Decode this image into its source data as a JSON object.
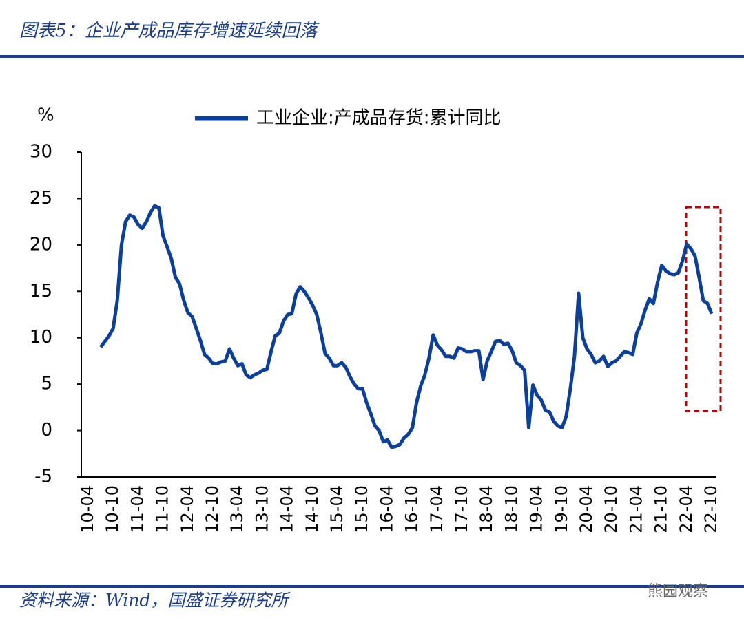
{
  "header": {
    "title": "图表5：企业产成品库存增速延续回落"
  },
  "chart_data": {
    "type": "line",
    "y_unit": "%",
    "categories": [
      "10-04",
      null,
      null,
      null,
      null,
      null,
      "10-10",
      null,
      null,
      null,
      null,
      null,
      "11-04",
      null,
      null,
      null,
      null,
      null,
      "11-10",
      null,
      null,
      null,
      null,
      null,
      "12-04",
      null,
      null,
      null,
      null,
      null,
      "12-10",
      null,
      null,
      null,
      null,
      null,
      "13-04",
      null,
      null,
      null,
      null,
      null,
      "13-10",
      null,
      null,
      null,
      null,
      null,
      "14-04",
      null,
      null,
      null,
      null,
      null,
      "14-10",
      null,
      null,
      null,
      null,
      null,
      "15-04",
      null,
      null,
      null,
      null,
      null,
      "15-10",
      null,
      null,
      null,
      null,
      null,
      "16-04",
      null,
      null,
      null,
      null,
      null,
      "16-10",
      null,
      null,
      null,
      null,
      null,
      "17-04",
      null,
      null,
      null,
      null,
      null,
      "17-10",
      null,
      null,
      null,
      null,
      null,
      "18-04",
      null,
      null,
      null,
      null,
      null,
      "18-10",
      null,
      null,
      null,
      null,
      null,
      "19-04",
      null,
      null,
      null,
      null,
      null,
      "19-10",
      null,
      null,
      null,
      null,
      null,
      "20-04",
      null,
      null,
      null,
      null,
      null,
      "20-10",
      null,
      null,
      null,
      null,
      null,
      "21-04",
      null,
      null,
      null,
      null,
      null,
      "21-10",
      null,
      null,
      null,
      null,
      null,
      "22-04",
      null,
      null,
      null,
      null,
      null,
      "22-10"
    ],
    "series": [
      {
        "name": "工业企业:产成品存货:累计同比",
        "color": "#0b3f9c",
        "values": [
          null,
          null,
          null,
          9.0,
          9.6,
          10.2,
          11.0,
          14.0,
          20.0,
          22.5,
          23.2,
          23.0,
          22.2,
          21.8,
          22.5,
          23.5,
          24.2,
          24.0,
          21.0,
          19.8,
          18.5,
          16.5,
          15.8,
          14.0,
          12.7,
          12.3,
          11.0,
          9.7,
          8.2,
          7.8,
          7.2,
          7.2,
          7.4,
          7.5,
          8.8,
          7.8,
          7.0,
          7.2,
          6.0,
          5.7,
          6.0,
          6.2,
          6.5,
          6.6,
          8.5,
          10.2,
          10.5,
          11.8,
          12.5,
          12.6,
          14.7,
          15.5,
          15.0,
          14.3,
          13.5,
          12.5,
          10.5,
          8.3,
          7.8,
          7.0,
          7.0,
          7.3,
          6.8,
          5.8,
          5.0,
          4.5,
          4.5,
          3.0,
          1.8,
          0.5,
          0,
          -1.2,
          -1.0,
          -1.8,
          -1.7,
          -1.5,
          -0.8,
          -0.4,
          0.3,
          3.0,
          4.8,
          6.0,
          7.8,
          10.3,
          9.2,
          8.7,
          8.0,
          8.0,
          7.8,
          8.9,
          8.8,
          8.5,
          8.5,
          8.6,
          8.6,
          5.5,
          7.5,
          8.5,
          9.6,
          9.7,
          9.3,
          9.4,
          8.6,
          7.3,
          7.0,
          6.5,
          0.3,
          4.9,
          3.8,
          3.3,
          2.2,
          2.0,
          1.0,
          0.5,
          0.3,
          1.5,
          4.5,
          8.0,
          14.8,
          10.0,
          8.8,
          8.2,
          7.3,
          7.5,
          8.0,
          6.9,
          7.3,
          7.5,
          8.0,
          8.5,
          8.4,
          8.2,
          10.5,
          11.5,
          13.0,
          14.2,
          13.7,
          16.0,
          17.8,
          17.2,
          16.9,
          16.8,
          17.0,
          18.3,
          20.1,
          19.6,
          18.8,
          16.5,
          14.0,
          13.7,
          12.6
        ]
      }
    ],
    "ylim": [
      -5,
      30
    ],
    "yticks": [
      -5,
      0,
      5,
      10,
      15,
      20,
      25,
      30
    ],
    "grid": false
  },
  "footer": {
    "source": "资料来源：Wind，国盛证券研究所",
    "watermark": "熊园观察"
  }
}
